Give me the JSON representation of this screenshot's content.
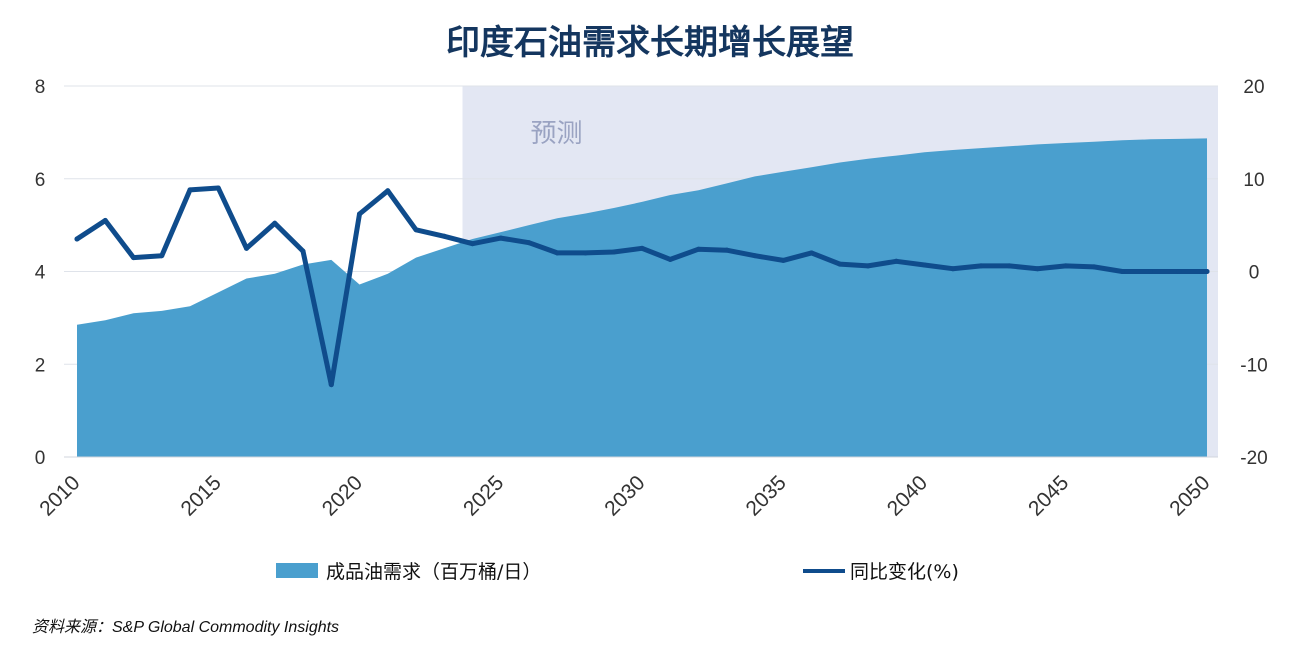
{
  "chart_data": {
    "type": "area+line",
    "title": "印度石油需求长期增长展望",
    "x": [
      2010,
      2011,
      2012,
      2013,
      2014,
      2015,
      2016,
      2017,
      2018,
      2019,
      2020,
      2021,
      2022,
      2023,
      2024,
      2025,
      2026,
      2027,
      2028,
      2029,
      2030,
      2031,
      2032,
      2033,
      2034,
      2035,
      2036,
      2037,
      2038,
      2039,
      2040,
      2041,
      2042,
      2043,
      2044,
      2045,
      2046,
      2047,
      2048,
      2049,
      2050
    ],
    "x_tick_labels": [
      "2010",
      "2015",
      "2020",
      "2025",
      "2030",
      "2035",
      "2040",
      "2045",
      "2050"
    ],
    "series": [
      {
        "name": "成品油需求（百万桶/日）",
        "type": "area",
        "axis": "left",
        "color": "#4a9fce",
        "values": [
          2.85,
          2.95,
          3.1,
          3.15,
          3.25,
          3.55,
          3.85,
          3.95,
          4.15,
          4.25,
          3.72,
          3.95,
          4.3,
          4.5,
          4.7,
          4.85,
          5.0,
          5.15,
          5.25,
          5.37,
          5.5,
          5.65,
          5.75,
          5.9,
          6.05,
          6.15,
          6.25,
          6.35,
          6.43,
          6.5,
          6.57,
          6.62,
          6.66,
          6.7,
          6.74,
          6.77,
          6.8,
          6.83,
          6.85,
          6.86,
          6.87
        ]
      },
      {
        "name": "同比变化(%)",
        "type": "line",
        "axis": "right",
        "color": "#0f4c8c",
        "values": [
          3.5,
          5.5,
          1.5,
          1.7,
          8.8,
          9.0,
          2.5,
          5.2,
          2.2,
          -12.2,
          6.2,
          8.7,
          4.5,
          3.8,
          3.0,
          3.6,
          3.1,
          2.0,
          2.0,
          2.1,
          2.5,
          1.3,
          2.4,
          2.3,
          1.7,
          1.2,
          2.0,
          0.8,
          0.6,
          1.1,
          0.7,
          0.3,
          0.6,
          0.6,
          0.3,
          0.6,
          0.5,
          0.0,
          0.0,
          0.0,
          0.0
        ]
      }
    ],
    "y_left": {
      "ylim": [
        0,
        8
      ],
      "ticks": [
        0,
        2,
        4,
        6,
        8
      ]
    },
    "y_right": {
      "ylim": [
        -20,
        20
      ],
      "ticks": [
        -20,
        -10,
        0,
        10,
        20
      ]
    },
    "forecast": {
      "label": "预测",
      "start": 2024,
      "end": 2050
    },
    "grid": true,
    "legend_position": "bottom"
  },
  "source_note": "资料来源：S&P Global Commodity Insights",
  "colors": {
    "area": "#4a9fce",
    "line": "#0f4c8c",
    "forecast_band": "#e3e7f3",
    "title": "#14365f"
  }
}
